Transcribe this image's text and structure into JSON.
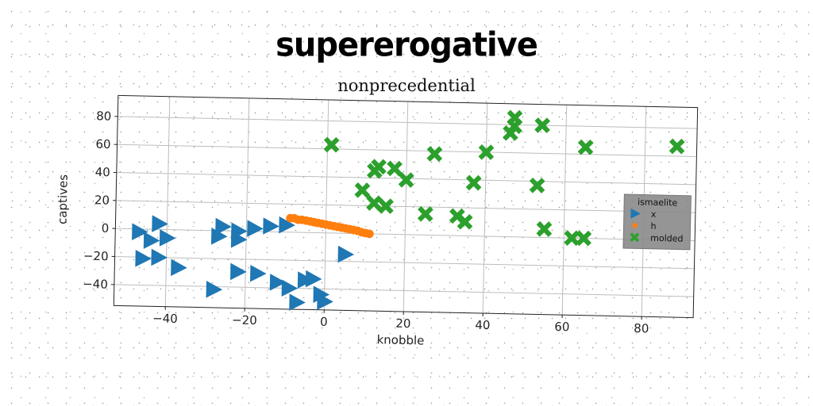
{
  "header": {
    "title": "supererogative",
    "subtitle": "nonprecedential"
  },
  "chart_data": {
    "type": "scatter",
    "xlabel": "knobble",
    "ylabel": "captives",
    "xlim": [
      -53,
      93
    ],
    "ylim": [
      -55,
      95
    ],
    "xticks": [
      -40,
      -20,
      0,
      20,
      40,
      60,
      80
    ],
    "yticks": [
      -40,
      -20,
      0,
      20,
      40,
      60,
      80
    ],
    "xtick_labels": [
      "−40",
      "−20",
      "0",
      "20",
      "40",
      "60",
      "80"
    ],
    "ytick_labels": [
      "−40",
      "−20",
      "0",
      "20",
      "40",
      "60",
      "80"
    ],
    "grid": true,
    "legend": {
      "title": "ismaelite",
      "placement": "right"
    },
    "series": [
      {
        "name": "x",
        "marker": "triangle-right",
        "color": "#1f77b4",
        "points": [
          [
            -47,
            -2
          ],
          [
            -42,
            4
          ],
          [
            -44,
            -8
          ],
          [
            -40,
            -6
          ],
          [
            -46,
            -21
          ],
          [
            -42,
            -20
          ],
          [
            -37,
            -27
          ],
          [
            -27,
            -4
          ],
          [
            -26,
            3
          ],
          [
            -22,
            0
          ],
          [
            -22,
            -6
          ],
          [
            -18,
            2
          ],
          [
            -14,
            4
          ],
          [
            -10,
            5
          ],
          [
            -22,
            -29
          ],
          [
            -17,
            -30
          ],
          [
            -28,
            -42
          ],
          [
            -12,
            -36
          ],
          [
            -9,
            -40
          ],
          [
            -7,
            -50
          ],
          [
            -5,
            -34
          ],
          [
            -3,
            -33
          ],
          [
            -1,
            -44
          ],
          [
            0,
            -49
          ],
          [
            5,
            -15
          ]
        ]
      },
      {
        "name": "h",
        "marker": "circle",
        "color": "#ff7f0e",
        "points": [
          [
            -9,
            10
          ],
          [
            -8,
            10
          ],
          [
            -7,
            9
          ],
          [
            -6,
            9
          ],
          [
            -5,
            8.5
          ],
          [
            -4,
            8
          ],
          [
            -3,
            7.5
          ],
          [
            -2,
            7
          ],
          [
            -1,
            6.5
          ],
          [
            0,
            6
          ],
          [
            1,
            5.5
          ],
          [
            2,
            5
          ],
          [
            3,
            4.5
          ],
          [
            4,
            4
          ],
          [
            5,
            3.5
          ],
          [
            6,
            3
          ],
          [
            7,
            2.5
          ],
          [
            8,
            2
          ],
          [
            9,
            1
          ],
          [
            10,
            0.5
          ],
          [
            11,
            0
          ]
        ]
      },
      {
        "name": "molded",
        "marker": "x",
        "color": "#2ca02c",
        "points": [
          [
            1,
            63
          ],
          [
            12,
            45
          ],
          [
            13,
            48
          ],
          [
            17,
            47
          ],
          [
            20,
            39
          ],
          [
            9,
            31
          ],
          [
            12,
            22
          ],
          [
            15,
            20
          ],
          [
            25,
            15
          ],
          [
            27,
            58
          ],
          [
            33,
            14
          ],
          [
            35,
            10
          ],
          [
            37,
            38
          ],
          [
            40,
            60
          ],
          [
            46,
            74
          ],
          [
            47,
            85
          ],
          [
            47,
            79
          ],
          [
            54,
            80
          ],
          [
            53,
            37
          ],
          [
            55,
            6
          ],
          [
            62,
            0
          ],
          [
            65,
            0
          ],
          [
            65,
            65
          ],
          [
            88,
            67
          ]
        ]
      }
    ]
  }
}
